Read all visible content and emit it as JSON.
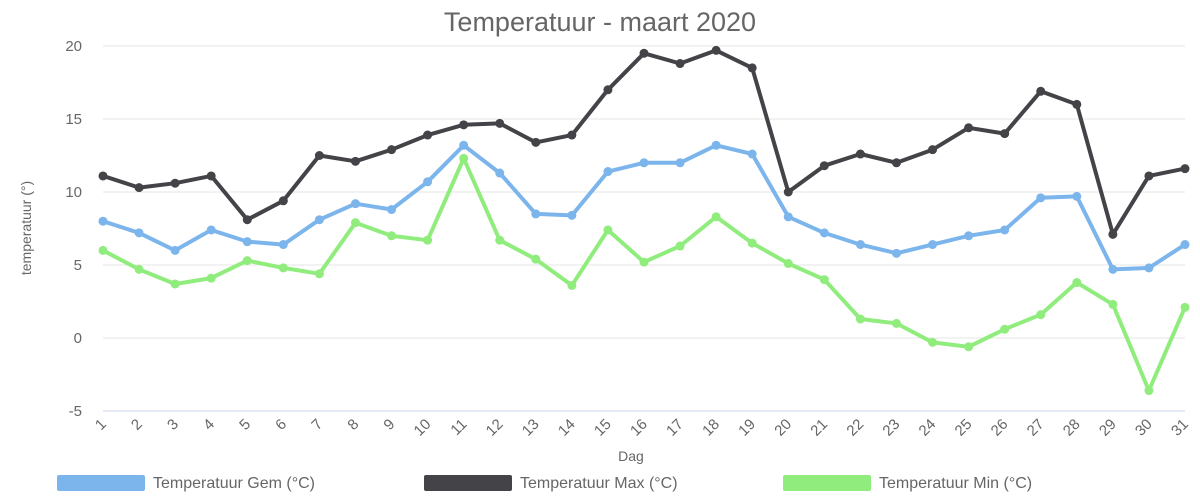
{
  "chart_data": {
    "type": "line",
    "title": "Temperatuur - maart 2020",
    "xlabel": "Dag",
    "ylabel": "temperatuur (°)",
    "ylim": [
      -5,
      20
    ],
    "yticks": [
      -5,
      0,
      5,
      10,
      15,
      20
    ],
    "grid": true,
    "legend": "bottom",
    "categories": [
      "1",
      "2",
      "3",
      "4",
      "5",
      "6",
      "7",
      "8",
      "9",
      "10",
      "11",
      "12",
      "13",
      "14",
      "15",
      "16",
      "17",
      "18",
      "19",
      "20",
      "21",
      "22",
      "23",
      "24",
      "25",
      "26",
      "27",
      "28",
      "29",
      "30",
      "31"
    ],
    "series": [
      {
        "name": "Temperatuur Gem (°C)",
        "color": "#7cb5ec",
        "values": [
          8.0,
          7.2,
          6.0,
          7.4,
          6.6,
          6.4,
          8.1,
          9.2,
          8.8,
          10.7,
          13.2,
          11.3,
          8.5,
          8.4,
          11.4,
          12.0,
          12.0,
          13.2,
          12.6,
          8.3,
          7.2,
          6.4,
          5.8,
          6.4,
          7.0,
          7.4,
          9.6,
          9.7,
          4.7,
          4.8,
          6.4
        ]
      },
      {
        "name": "Temperatuur Max (°C)",
        "color": "#434348",
        "values": [
          11.1,
          10.3,
          10.6,
          11.1,
          8.1,
          9.4,
          12.5,
          12.1,
          12.9,
          13.9,
          14.6,
          14.7,
          13.4,
          13.9,
          17.0,
          19.5,
          18.8,
          19.7,
          18.5,
          10.0,
          11.8,
          12.6,
          12.0,
          12.9,
          14.4,
          14.0,
          16.9,
          16.0,
          7.1,
          11.1,
          11.6
        ]
      },
      {
        "name": "Temperatuur Min (°C)",
        "color": "#90ed7d",
        "values": [
          6.0,
          4.7,
          3.7,
          4.1,
          5.3,
          4.8,
          4.4,
          7.9,
          7.0,
          6.7,
          12.3,
          6.7,
          5.4,
          3.6,
          7.4,
          5.2,
          6.3,
          8.3,
          6.5,
          5.1,
          4.0,
          1.3,
          1.0,
          -0.3,
          -0.6,
          0.6,
          1.6,
          3.8,
          2.3,
          -3.6,
          2.1
        ]
      }
    ]
  }
}
